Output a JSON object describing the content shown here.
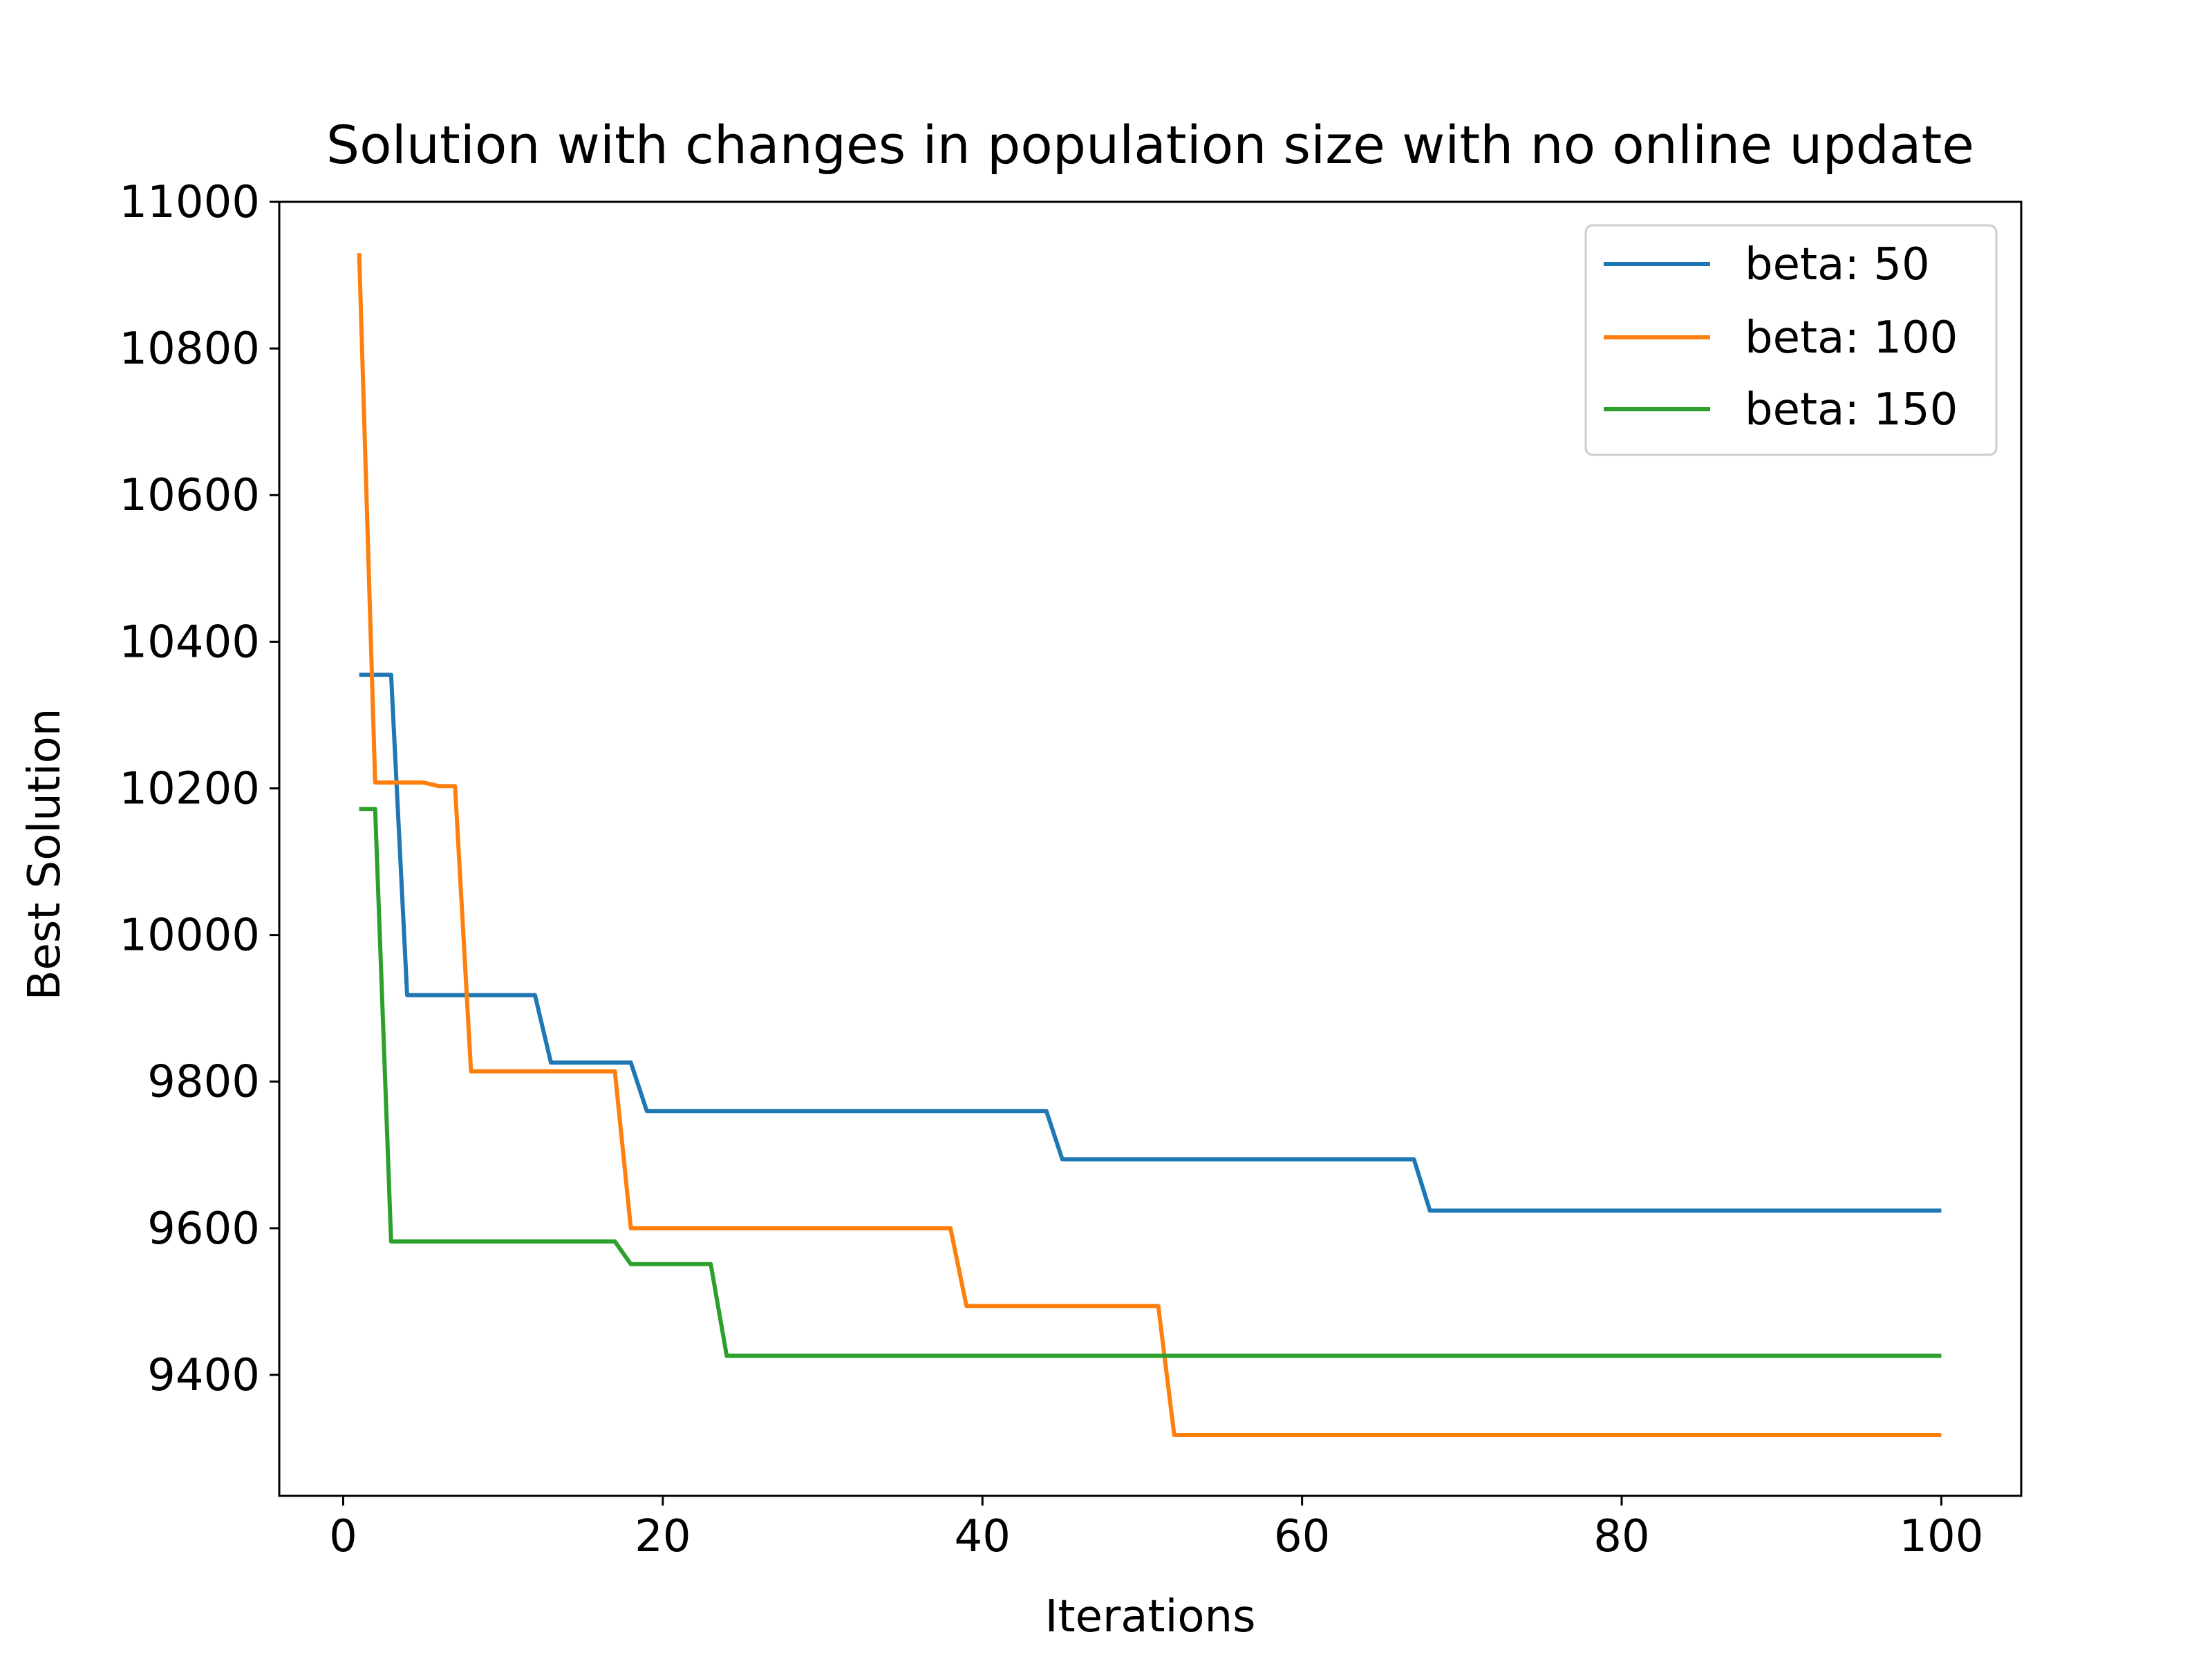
{
  "chart_data": {
    "type": "line",
    "title": "Solution with changes in population size  with no online update",
    "xlabel": "Iterations",
    "ylabel": "Best Solution",
    "xlim": [
      -4,
      105
    ],
    "ylim": [
      9235,
      11000
    ],
    "xticks": [
      0,
      20,
      40,
      60,
      80,
      100
    ],
    "yticks": [
      9400,
      9600,
      9800,
      10000,
      10200,
      10400,
      10600,
      10800,
      11000
    ],
    "grid": false,
    "legend_position": "top-right",
    "series": [
      {
        "name": "beta: 50",
        "color": "#1f77b4",
        "points": [
          [
            1,
            10355
          ],
          [
            3,
            10355
          ],
          [
            4,
            9918
          ],
          [
            12,
            9918
          ],
          [
            13,
            9826
          ],
          [
            18,
            9826
          ],
          [
            19,
            9760
          ],
          [
            44,
            9760
          ],
          [
            45,
            9694
          ],
          [
            67,
            9694
          ],
          [
            68,
            9624
          ],
          [
            100,
            9624
          ]
        ]
      },
      {
        "name": "beta: 100",
        "color": "#ff7f0e",
        "points": [
          [
            1,
            10930
          ],
          [
            2,
            10208
          ],
          [
            5,
            10208
          ],
          [
            6,
            10203
          ],
          [
            7,
            10203
          ],
          [
            8,
            9814
          ],
          [
            17,
            9814
          ],
          [
            18,
            9600
          ],
          [
            38,
            9600
          ],
          [
            39,
            9494
          ],
          [
            51,
            9494
          ],
          [
            52,
            9318
          ],
          [
            100,
            9318
          ]
        ]
      },
      {
        "name": "beta: 150",
        "color": "#2ca02c",
        "points": [
          [
            1,
            10172
          ],
          [
            2,
            10172
          ],
          [
            3,
            9582
          ],
          [
            17,
            9582
          ],
          [
            18,
            9551
          ],
          [
            23,
            9551
          ],
          [
            24,
            9426
          ],
          [
            100,
            9426
          ]
        ]
      }
    ]
  }
}
